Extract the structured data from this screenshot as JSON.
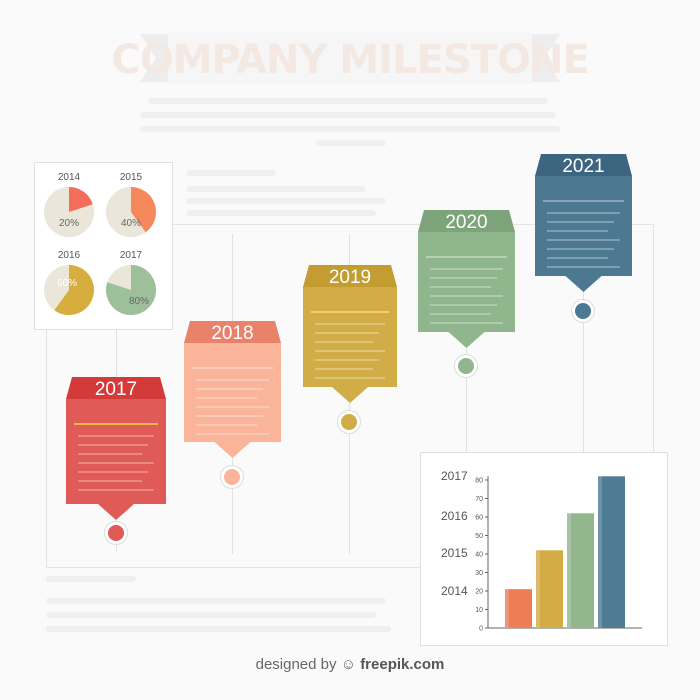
{
  "header": {
    "title": "COMPANY MILESTONE"
  },
  "milestones": [
    {
      "year": "2017",
      "color": "#e05a57",
      "head_color": "#d43a3a"
    },
    {
      "year": "2018",
      "color": "#f9b49a",
      "head_color": "#e9826a"
    },
    {
      "year": "2019",
      "color": "#d1ac47",
      "head_color": "#c39c32"
    },
    {
      "year": "2020",
      "color": "#90b68e",
      "head_color": "#7da37b"
    },
    {
      "year": "2021",
      "color": "#4d7891",
      "head_color": "#3c667f"
    }
  ],
  "pies": [
    {
      "year": "2014",
      "value": 20,
      "label": "20%",
      "color": "#f26d5b"
    },
    {
      "year": "2015",
      "value": 40,
      "label": "40%",
      "color": "#f5885c"
    },
    {
      "year": "2016",
      "value": 60,
      "label": "60%",
      "color": "#d7ad3e"
    },
    {
      "year": "2017",
      "value": 80,
      "label": "80%",
      "color": "#9dbf9a"
    }
  ],
  "chart_data": {
    "type": "bar",
    "categories": [
      "2014",
      "2015",
      "2016",
      "2017"
    ],
    "values": [
      21,
      42,
      62,
      82
    ],
    "colors": [
      "#ee7d55",
      "#d3ac46",
      "#93b68f",
      "#4f7b93"
    ],
    "ylim": [
      0,
      80
    ],
    "yticks": [
      "0",
      "10",
      "20",
      "30",
      "40",
      "50",
      "60",
      "70",
      "80"
    ],
    "year_labels": [
      "2017",
      "2016",
      "2015",
      "2014"
    ]
  },
  "footer": {
    "prefix": "designed by",
    "brand": "freepik.com"
  }
}
